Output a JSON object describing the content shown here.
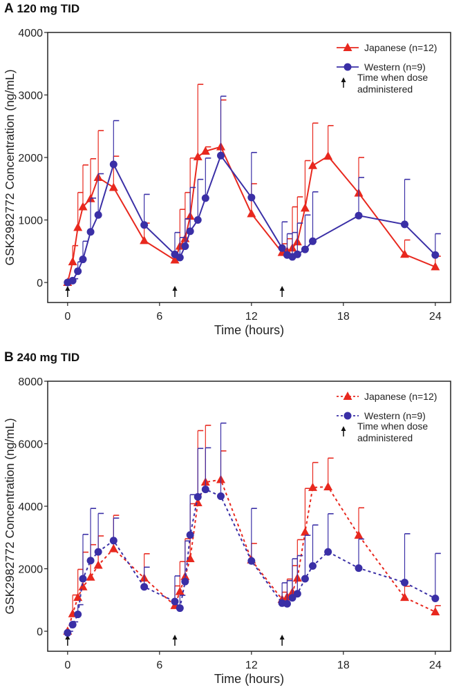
{
  "chart_data": [
    {
      "panel_label": "A",
      "title": "120 mg TID",
      "type": "line",
      "line_style": "solid",
      "xlabel": "Time (hours)",
      "ylabel": "GSK2982772 Concentration (ng/mL)",
      "xlim": [
        -1.3,
        25
      ],
      "ylim": [
        -320,
        4000
      ],
      "xticks": [
        0,
        6,
        12,
        18,
        24
      ],
      "yticks": [
        0,
        1000,
        2000,
        3000,
        4000
      ],
      "grid": false,
      "legend_position": "top-right",
      "dose_times": [
        0,
        7,
        14
      ],
      "legend_dose_label": [
        "Time when dose",
        "administered"
      ],
      "series": [
        {
          "name": "Japanese (n=12)",
          "color": "#e8281e",
          "marker": "triangle",
          "x": [
            0,
            0.33,
            0.67,
            1,
            1.5,
            2,
            3,
            5,
            7,
            7.33,
            7.67,
            8,
            8.5,
            9,
            10,
            12,
            14,
            14.33,
            14.67,
            15,
            15.5,
            16,
            17,
            19,
            22,
            24
          ],
          "y": [
            0,
            330,
            880,
            1210,
            1340,
            1680,
            1520,
            670,
            360,
            580,
            700,
            1060,
            2010,
            2100,
            2170,
            1100,
            480,
            500,
            550,
            650,
            1190,
            1870,
            2020,
            1430,
            450,
            250
          ],
          "upper": [
            0,
            590,
            1440,
            1880,
            1980,
            2430,
            2020,
            950,
            400,
            1170,
            1440,
            1990,
            3170,
            2170,
            2920,
            1580,
            620,
            700,
            1210,
            1370,
            1950,
            2550,
            2510,
            2000,
            680,
            420
          ]
        },
        {
          "name": "Western (n=9)",
          "color": "#3a2fa6",
          "marker": "circle",
          "x": [
            0,
            0.33,
            0.67,
            1,
            1.5,
            2,
            3,
            5,
            7,
            7.33,
            7.67,
            8,
            8.5,
            9,
            10,
            12,
            14,
            14.33,
            14.67,
            15,
            15.5,
            16,
            19,
            22,
            24
          ],
          "y": [
            0,
            30,
            180,
            370,
            810,
            1080,
            1890,
            920,
            450,
            400,
            580,
            820,
            1000,
            1350,
            2030,
            1360,
            550,
            440,
            410,
            450,
            530,
            660,
            1070,
            930,
            440
          ],
          "upper": [
            0,
            60,
            330,
            660,
            1350,
            1740,
            2590,
            1410,
            800,
            720,
            1020,
            1520,
            1650,
            1990,
            2980,
            2080,
            970,
            780,
            800,
            950,
            1080,
            1450,
            1680,
            1650,
            780
          ]
        }
      ]
    },
    {
      "panel_label": "B",
      "title": "240 mg TID",
      "type": "line",
      "line_style": "dashed",
      "xlabel": "Time (hours)",
      "ylabel": "GSK2982772 Concentration (ng/mL)",
      "xlim": [
        -1.3,
        25
      ],
      "ylim": [
        -640,
        8000
      ],
      "xticks": [
        0,
        6,
        12,
        18,
        24
      ],
      "yticks": [
        0,
        2000,
        4000,
        6000,
        8000
      ],
      "grid": false,
      "legend_position": "top-right",
      "dose_times": [
        0,
        7,
        14
      ],
      "legend_dose_label": [
        "Time when dose",
        "administered"
      ],
      "series": [
        {
          "name": "Japanese (n=12)",
          "color": "#e8281e",
          "marker": "triangle",
          "x": [
            0,
            0.33,
            0.67,
            1,
            1.5,
            2,
            3,
            5,
            7,
            7.33,
            7.67,
            8,
            8.5,
            9,
            10,
            12,
            14,
            14.33,
            14.67,
            15,
            15.5,
            16,
            17,
            19,
            22,
            24
          ],
          "y": [
            0,
            560,
            1080,
            1420,
            1730,
            2110,
            2640,
            1700,
            820,
            1270,
            1750,
            2320,
            4110,
            4770,
            4850,
            2280,
            1020,
            1100,
            1250,
            1700,
            3170,
            4600,
            4620,
            3070,
            1080,
            620
          ],
          "upper": [
            0,
            1160,
            1980,
            2530,
            2770,
            3050,
            3710,
            2480,
            1450,
            2230,
            2960,
            4080,
            6420,
            6590,
            5770,
            2810,
            1250,
            1670,
            2100,
            2930,
            4570,
            5400,
            5540,
            3950,
            1440,
            820
          ]
        },
        {
          "name": "Western (n=9)",
          "color": "#3a2fa6",
          "marker": "circle",
          "x": [
            0,
            0.33,
            0.67,
            1,
            1.5,
            2,
            3,
            5,
            7,
            7.33,
            7.67,
            8,
            8.5,
            9,
            10,
            12,
            14,
            14.33,
            14.67,
            15,
            15.5,
            16,
            17,
            19,
            22,
            24
          ],
          "y": [
            -50,
            210,
            540,
            1680,
            2260,
            2540,
            2900,
            1420,
            950,
            740,
            1590,
            3080,
            4300,
            4540,
            4320,
            2250,
            900,
            880,
            1070,
            1200,
            1680,
            2090,
            2540,
            2020,
            1560,
            1050
          ],
          "upper": [
            0,
            300,
            850,
            3100,
            3930,
            3770,
            3620,
            2050,
            1770,
            1150,
            2890,
            4370,
            5850,
            5870,
            6660,
            3930,
            1550,
            1620,
            2320,
            2420,
            3070,
            3400,
            3760,
            2950,
            3120,
            2490
          ]
        }
      ]
    }
  ]
}
